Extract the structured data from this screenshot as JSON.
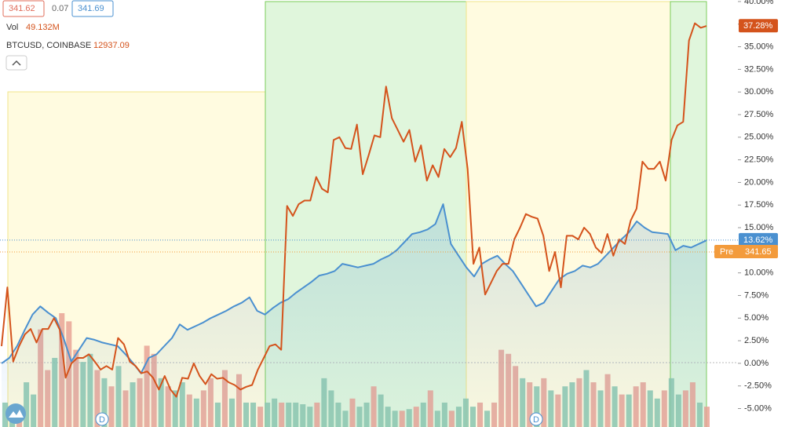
{
  "chart_data": {
    "type": "line",
    "legend": {
      "open": "341.62",
      "change": "0.07",
      "close": "341.69",
      "vol_label": "Vol",
      "vol_value": "49.132M",
      "symbol": "BTCUSD, COINBASE",
      "symbol_value": "12937.09"
    },
    "ylim": [
      -7.04,
      40.17
    ],
    "yticks": [
      {
        "value": -5,
        "label": "-5.00%"
      },
      {
        "value": -2.5,
        "label": "-2.50%"
      },
      {
        "value": 0,
        "label": "0.00%"
      },
      {
        "value": 2.5,
        "label": "2.50%"
      },
      {
        "value": 5,
        "label": "5.00%"
      },
      {
        "value": 7.5,
        "label": "7.50%"
      },
      {
        "value": 10,
        "label": "10.00%"
      },
      {
        "value": 12.5,
        "label": "12.50%"
      },
      {
        "value": 15,
        "label": "15.00%"
      },
      {
        "value": 17.5,
        "label": "17.50%"
      },
      {
        "value": 20,
        "label": "20.00%"
      },
      {
        "value": 22.5,
        "label": "22.50%"
      },
      {
        "value": 25,
        "label": "25.00%"
      },
      {
        "value": 27.5,
        "label": "27.50%"
      },
      {
        "value": 30,
        "label": "30.00%"
      },
      {
        "value": 32.5,
        "label": "32.50%"
      },
      {
        "value": 35,
        "label": "35.00%"
      },
      {
        "value": 37.5,
        "label": "37.50%"
      },
      {
        "value": 40,
        "label": "40.00%"
      }
    ],
    "series": [
      {
        "color": "#d4531c",
        "last": {
          "value": 37.28,
          "label": "37.28%"
        },
        "values": [
          1.9,
          8.4,
          0.2,
          1.9,
          3.2,
          3.8,
          2.3,
          3.8,
          3.8,
          5.0,
          3.7,
          -1.6,
          0,
          0.6,
          0.6,
          1.0,
          0.2,
          -0.7,
          -0.3,
          -0.7,
          2.8,
          2.1,
          0.2,
          -0.3,
          -1.1,
          -0.9,
          -1.6,
          -2.9,
          -1.4,
          -2.9,
          -3.7,
          -1.6,
          -1.7,
          0,
          -1.4,
          -2.3,
          -1.2,
          -1.7,
          -1.6,
          -2.1,
          -2.4,
          -2.9,
          -2.6,
          -2.4,
          -0.7,
          0.6,
          1.9,
          2.1,
          1.5,
          17.4,
          16.3,
          17.6,
          18.0,
          18.0,
          20.6,
          19.3,
          18.9,
          24.7,
          25.0,
          23.8,
          23.7,
          26.4,
          20.9,
          23.0,
          25.2,
          25.0,
          30.6,
          27.1,
          25.8,
          24.5,
          25.8,
          22.3,
          24.1,
          20.2,
          21.9,
          20.6,
          23.7,
          22.8,
          23.8,
          26.7,
          21.5,
          11.0,
          12.8,
          7.6,
          8.9,
          10.2,
          11.0,
          11.0,
          13.7,
          15.0,
          16.5,
          16.2,
          16.0,
          14.1,
          10.2,
          12.3,
          8.4,
          14.1,
          14.1,
          13.7,
          15.0,
          14.3,
          12.8,
          12.2,
          14.3,
          11.9,
          13.7,
          13.2,
          15.8,
          17.1,
          22.3,
          21.5,
          21.5,
          22.3,
          20.2,
          24.7,
          26.3,
          26.7,
          35.7,
          37.6,
          37.1,
          37.3
        ]
      },
      {
        "color": "#4a90d0",
        "last": {
          "value": 13.62,
          "label": "13.62%"
        },
        "values": [
          0,
          0.6,
          1.9,
          3.7,
          5.4,
          6.3,
          5.6,
          5.0,
          2.8,
          0.2,
          1.5,
          2.8,
          2.6,
          2.3,
          2.1,
          1.9,
          1.0,
          0,
          -1.1,
          0.6,
          1.0,
          1.9,
          2.8,
          4.3,
          3.7,
          4.1,
          4.5,
          5.0,
          5.4,
          5.8,
          6.3,
          6.7,
          7.3,
          5.8,
          5.4,
          6.1,
          6.7,
          7.1,
          7.8,
          8.4,
          9.0,
          9.7,
          9.9,
          10.2,
          11.0,
          10.8,
          10.6,
          10.8,
          11.0,
          11.5,
          11.9,
          12.5,
          13.4,
          14.3,
          14.5,
          14.8,
          15.4,
          17.6,
          13.2,
          11.9,
          10.6,
          9.6,
          11.0,
          11.5,
          11.9,
          11.0,
          10.2,
          8.9,
          7.6,
          6.3,
          6.7,
          8.0,
          9.3,
          9.9,
          10.2,
          10.8,
          10.6,
          11.0,
          11.9,
          12.8,
          13.7,
          14.5,
          15.7,
          15.0,
          14.5,
          14.4,
          14.3,
          12.5,
          13.0,
          12.8,
          13.2,
          13.6
        ]
      }
    ],
    "pre": {
      "tag": "Pre",
      "price": "341.65"
    },
    "session_markers": [
      "D",
      "D"
    ],
    "volume": {
      "up_color": "#8cc7ae",
      "down_color": "#e9a395",
      "values": [
        30,
        25,
        20,
        55,
        40,
        120,
        70,
        85,
        140,
        130,
        95,
        80,
        90,
        70,
        60,
        50,
        75,
        45,
        55,
        60,
        100,
        90,
        60,
        50,
        45,
        55,
        40,
        35,
        45,
        60,
        30,
        70,
        35,
        65,
        30,
        30,
        25,
        30,
        35,
        30,
        30,
        30,
        28,
        25,
        30,
        60,
        45,
        30,
        20,
        35,
        25,
        30,
        50,
        40,
        25,
        20,
        20,
        22,
        25,
        30,
        45,
        20,
        30,
        20,
        25,
        35,
        25,
        30,
        20,
        30,
        95,
        90,
        75,
        60,
        55,
        50,
        60,
        45,
        40,
        50,
        55,
        60,
        70,
        55,
        45,
        65,
        50,
        40,
        40,
        50,
        55,
        45,
        35,
        45,
        60,
        40,
        45,
        55,
        30,
        25
      ],
      "up": [
        true,
        true,
        false,
        true,
        true,
        false,
        false,
        true,
        false,
        false,
        false,
        true,
        true,
        false,
        true,
        false,
        true,
        false,
        true,
        false,
        false,
        false,
        true,
        false,
        true,
        true,
        false,
        true,
        false,
        false,
        true,
        false,
        true,
        false,
        true,
        true,
        false,
        true,
        true,
        false,
        true,
        true,
        true,
        true,
        false,
        true,
        true,
        true,
        true,
        false,
        true,
        true,
        false,
        true,
        true,
        true,
        false,
        true,
        false,
        true,
        false,
        true,
        true,
        false,
        true,
        true,
        true,
        false,
        true,
        false,
        false,
        false,
        false,
        true,
        false,
        true,
        false,
        true,
        false,
        true,
        true,
        false,
        true,
        false,
        true,
        false,
        true,
        false,
        true,
        false,
        false,
        true,
        true,
        false,
        true,
        true,
        false,
        false,
        true,
        false
      ]
    }
  }
}
